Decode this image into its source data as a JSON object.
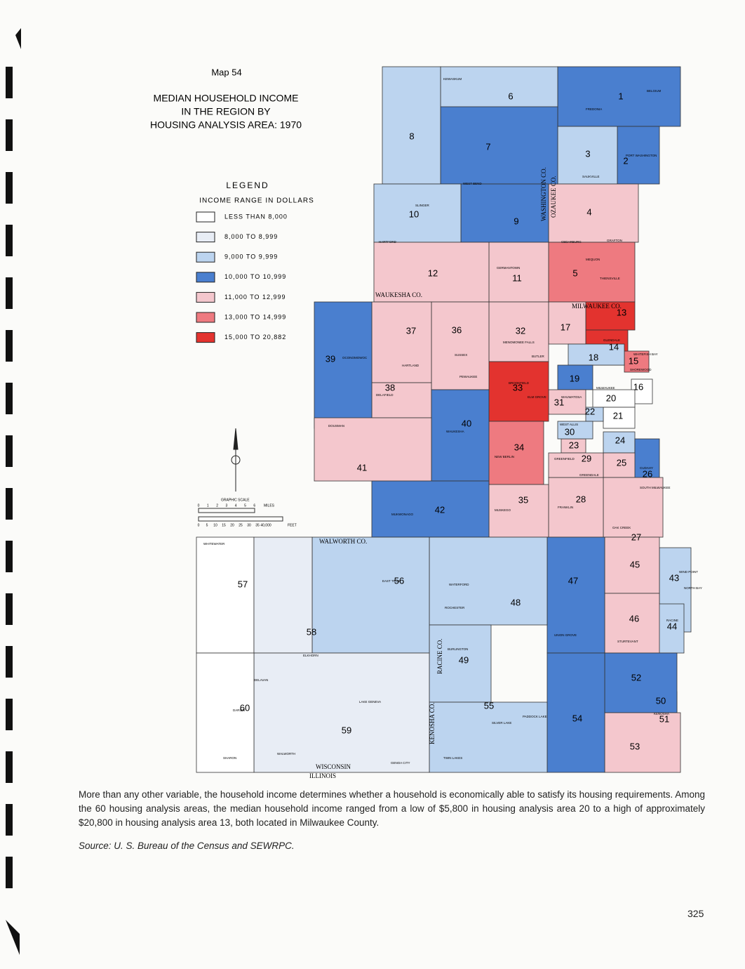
{
  "header": {
    "map_number": "Map 54",
    "title_lines": [
      "MEDIAN HOUSEHOLD INCOME",
      "IN THE REGION BY",
      "HOUSING ANALYSIS AREA: 1970"
    ]
  },
  "legend": {
    "title": "LEGEND",
    "subtitle": "INCOME RANGE IN DOLLARS",
    "items": [
      {
        "label": "LESS THAN 8,000",
        "color": "#ffffff"
      },
      {
        "label": "8,000  TO  8,999",
        "color": "#e8edf5"
      },
      {
        "label": "9,000  TO  9,999",
        "color": "#bcd4ef"
      },
      {
        "label": "10,000  TO 10,999",
        "color": "#4a7fcf"
      },
      {
        "label": "11,000  TO 12,999",
        "color": "#f4c7cd"
      },
      {
        "label": "13,000  TO 14,999",
        "color": "#ee7a80"
      },
      {
        "label": "15,000  TO 20,882",
        "color": "#e3332f"
      }
    ]
  },
  "scale": {
    "title": "GRAPHIC SCALE",
    "miles": [
      "0",
      "1",
      "2",
      "3",
      "4",
      "5",
      "6"
    ],
    "miles_unit": "MILES",
    "feet": [
      "0",
      "5",
      "10",
      "15",
      "20",
      "25",
      "30",
      "35",
      "40,000"
    ],
    "feet_unit": "FEET"
  },
  "areas": [
    {
      "label": "1",
      "color": "#4a7fcf"
    },
    {
      "label": "2",
      "color": "#4a7fcf"
    },
    {
      "label": "3",
      "color": "#bcd4ef"
    },
    {
      "label": "4",
      "color": "#f4c7cd"
    },
    {
      "label": "5",
      "color": "#ee7a80"
    },
    {
      "label": "6",
      "color": "#bcd4ef"
    },
    {
      "label": "7",
      "color": "#4a7fcf"
    },
    {
      "label": "8",
      "color": "#bcd4ef"
    },
    {
      "label": "9",
      "color": "#4a7fcf"
    },
    {
      "label": "10",
      "color": "#bcd4ef"
    },
    {
      "label": "11",
      "color": "#f4c7cd"
    },
    {
      "label": "12",
      "color": "#f4c7cd"
    },
    {
      "label": "13",
      "color": "#e3332f"
    },
    {
      "label": "14",
      "color": "#e3332f"
    },
    {
      "label": "15",
      "color": "#ee7a80"
    },
    {
      "label": "16",
      "color": "#ffffff"
    },
    {
      "label": "17",
      "color": "#f4c7cd"
    },
    {
      "label": "18",
      "color": "#bcd4ef"
    },
    {
      "label": "19",
      "color": "#4a7fcf"
    },
    {
      "label": "20",
      "color": "#ffffff"
    },
    {
      "label": "21",
      "color": "#ffffff"
    },
    {
      "label": "22",
      "color": "#bcd4ef"
    },
    {
      "label": "23",
      "color": "#f4c7cd"
    },
    {
      "label": "24",
      "color": "#bcd4ef"
    },
    {
      "label": "25",
      "color": "#f4c7cd"
    },
    {
      "label": "26",
      "color": "#4a7fcf"
    },
    {
      "label": "27",
      "color": "#f4c7cd"
    },
    {
      "label": "28",
      "color": "#f4c7cd"
    },
    {
      "label": "29",
      "color": "#f4c7cd"
    },
    {
      "label": "30",
      "color": "#bcd4ef"
    },
    {
      "label": "31",
      "color": "#f4c7cd"
    },
    {
      "label": "32",
      "color": "#f4c7cd"
    },
    {
      "label": "33",
      "color": "#e3332f"
    },
    {
      "label": "34",
      "color": "#ee7a80"
    },
    {
      "label": "35",
      "color": "#f4c7cd"
    },
    {
      "label": "36",
      "color": "#f4c7cd"
    },
    {
      "label": "37",
      "color": "#f4c7cd"
    },
    {
      "label": "38",
      "color": "#f4c7cd"
    },
    {
      "label": "39",
      "color": "#4a7fcf"
    },
    {
      "label": "40",
      "color": "#4a7fcf"
    },
    {
      "label": "41",
      "color": "#f4c7cd"
    },
    {
      "label": "42",
      "color": "#4a7fcf"
    },
    {
      "label": "43",
      "color": "#bcd4ef"
    },
    {
      "label": "44",
      "color": "#bcd4ef"
    },
    {
      "label": "45",
      "color": "#f4c7cd"
    },
    {
      "label": "46",
      "color": "#f4c7cd"
    },
    {
      "label": "47",
      "color": "#4a7fcf"
    },
    {
      "label": "48",
      "color": "#bcd4ef"
    },
    {
      "label": "49",
      "color": "#bcd4ef"
    },
    {
      "label": "50",
      "color": "#bcd4ef"
    },
    {
      "label": "51",
      "color": "#bcd4ef"
    },
    {
      "label": "52",
      "color": "#4a7fcf"
    },
    {
      "label": "53",
      "color": "#f4c7cd"
    },
    {
      "label": "54",
      "color": "#4a7fcf"
    },
    {
      "label": "55",
      "color": "#bcd4ef"
    },
    {
      "label": "56",
      "color": "#bcd4ef"
    },
    {
      "label": "57",
      "color": "#ffffff"
    },
    {
      "label": "58",
      "color": "#e8edf5"
    },
    {
      "label": "59",
      "color": "#e8edf5"
    },
    {
      "label": "60",
      "color": "#ffffff"
    }
  ],
  "county_labels": [
    "WASHINGTON CO.",
    "OZAUKEE CO.",
    "WAUKESHA CO.",
    "MILWAUKEE CO.",
    "WALWORTH CO.",
    "RACINE CO.",
    "KENOSHA CO.",
    "WISCONSIN",
    "ILLINOIS"
  ],
  "places": [
    "KEWASKUM",
    "WEST BEND",
    "HARTFORD",
    "SLINGER",
    "FREDONIA",
    "BELGIUM",
    "PORT WASHINGTON",
    "SAUKVILLE",
    "GRAFTON",
    "CEDARBURG",
    "MEQUON",
    "THIENSVILLE",
    "GERMANTOWN",
    "MENOMONEE FALLS",
    "BUTLER",
    "SUSSEX",
    "HARTLAND",
    "OCONOMOWOC",
    "DELAFIELD",
    "DOUSMAN",
    "PEWAUKEE",
    "BROOKFIELD",
    "ELM GROVE",
    "WAUWATOSA",
    "WEST ALLIS",
    "GREENFIELD",
    "GREENDALE",
    "NEW BERLIN",
    "WAUKESHA",
    "MUKWONAGO",
    "MUSKEGO",
    "FRANKLIN",
    "OAK CREEK",
    "CUDAHY",
    "SOUTH MILWAUKEE",
    "WHITEFISH BAY",
    "SHOREWOOD",
    "GLENDALE",
    "MILWAUKEE",
    "WHITEWATER",
    "ELKHORN",
    "DELAVAN",
    "DARIEN",
    "SHARON",
    "WALWORTH",
    "LAKE GENEVA",
    "EAST TROY",
    "WATERFORD",
    "ROCHESTER",
    "BURLINGTON",
    "UNION GROVE",
    "STURTEVANT",
    "RACINE",
    "WIND POINT",
    "NORTH BAY",
    "KENOSHA",
    "PADDOCK LAKE",
    "SILVER LAKE",
    "TWIN LAKES",
    "GENOA CITY"
  ],
  "paragraph": "More than any other variable, the household income determines whether a household is economically able to satisfy its housing requirements. Among the 60 housing analysis areas, the median household income ranged from a low of $5,800 in housing analysis area 20 to a high of approximately $20,800 in housing analysis area 13, both located in Milwaukee County.",
  "source": "Source:  U. S. Bureau of the Census and SEWRPC.",
  "page_number": "325"
}
